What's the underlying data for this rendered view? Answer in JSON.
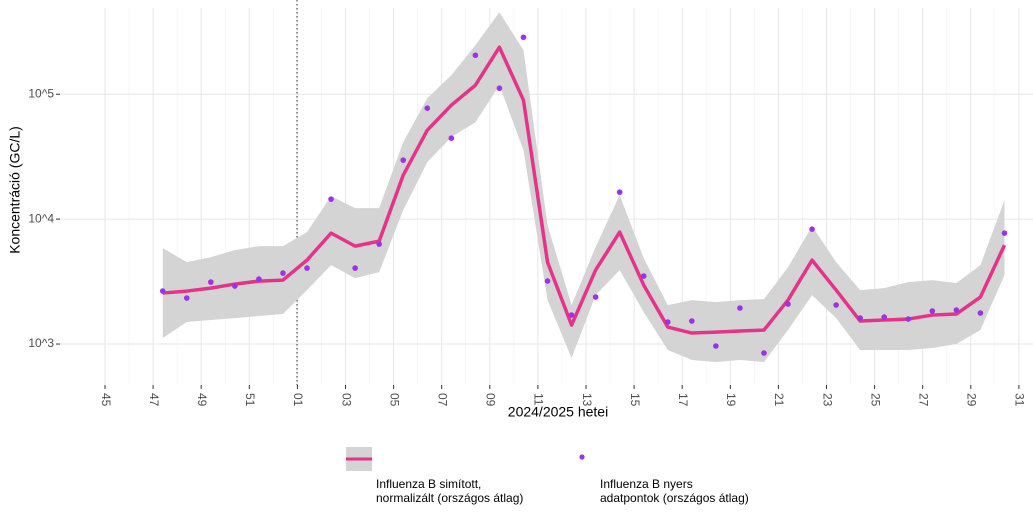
{
  "chart_data": {
    "type": "line-band-scatter",
    "y_label": "Koncentráció (GC/L)",
    "x_label": "2024/2025 hetei",
    "log_y": true,
    "grid": true,
    "categories": [
      "45",
      null,
      "47",
      null,
      "49",
      null,
      "51",
      null,
      "01",
      null,
      "03",
      null,
      "05",
      null,
      "07",
      null,
      "09",
      null,
      "11",
      null,
      "13",
      null,
      "15",
      null,
      "17",
      null,
      "19",
      null,
      "21",
      null,
      "23",
      null,
      "25",
      null,
      "27",
      null,
      "29",
      null,
      "31"
    ],
    "ylim": [
      470,
      490000
    ],
    "yticks": [
      {
        "value": 1000,
        "label": "10^3"
      },
      {
        "value": 10000,
        "label": "10^4"
      },
      {
        "value": 100000,
        "label": "10^5"
      }
    ],
    "series": [
      {
        "name": "Influenza B simított,\n normalizált (országos átlag)",
        "color": "#e5338a",
        "band_color": "#d4d4d4",
        "values": [
          null,
          null,
          2559,
          2655,
          2805,
          3020,
          3192,
          3251,
          4699,
          7727,
          6081,
          6668,
          22490,
          51520,
          81660,
          118000,
          237700,
          89540,
          4529,
          1419,
          3908,
          7870,
          2965,
          1368,
          1225,
          1247,
          1271,
          1294,
          2249,
          4699,
          2704,
          1528,
          1556,
          1585,
          1706,
          1738,
          2377,
          6194,
          null
        ],
        "upper": [
          null,
          null,
          5861,
          4529,
          4966,
          5649,
          6081,
          6081,
          7870,
          15280,
          12250,
          12250,
          41300,
          92900,
          141900,
          246600,
          452900,
          224900,
          8954,
          2051,
          5970,
          15560,
          4875,
          2051,
          2249,
          2168,
          2249,
          2291,
          4130,
          8790,
          4529,
          2704,
          2805,
          3133,
          3251,
          3076,
          4285,
          14190,
          null
        ],
        "lower": [
          null,
          null,
          1117,
          1500,
          1556,
          1614,
          1675,
          1738,
          2704,
          4285,
          3373,
          3767,
          11800,
          28580,
          45290,
          59700,
          118000,
          35650,
          2249,
          773,
          2466,
          3908,
          1803,
          895,
          745,
          718,
          745,
          718,
          1294,
          2466,
          1614,
          895,
          895,
          895,
          929,
          1000,
          1294,
          3565,
          null
        ]
      },
      {
        "name": "Influenza B nyers\n adatpontok (országos átlag)",
        "color": "#9b32e6",
        "values": [
          null,
          null,
          2655,
          2335,
          3133,
          2913,
          3311,
          3698,
          4055,
          14454,
          4055,
          6310,
          29650,
          77270,
          44460,
          205100,
          111700,
          285800,
          3192,
          1706,
          2377,
          16440,
          3499,
          1500,
          1528,
          964,
          1941,
          847,
          2089,
          8318,
          2051,
          1614,
          1644,
          1585,
          1837,
          1871,
          1770,
          7727,
          null
        ]
      }
    ]
  }
}
